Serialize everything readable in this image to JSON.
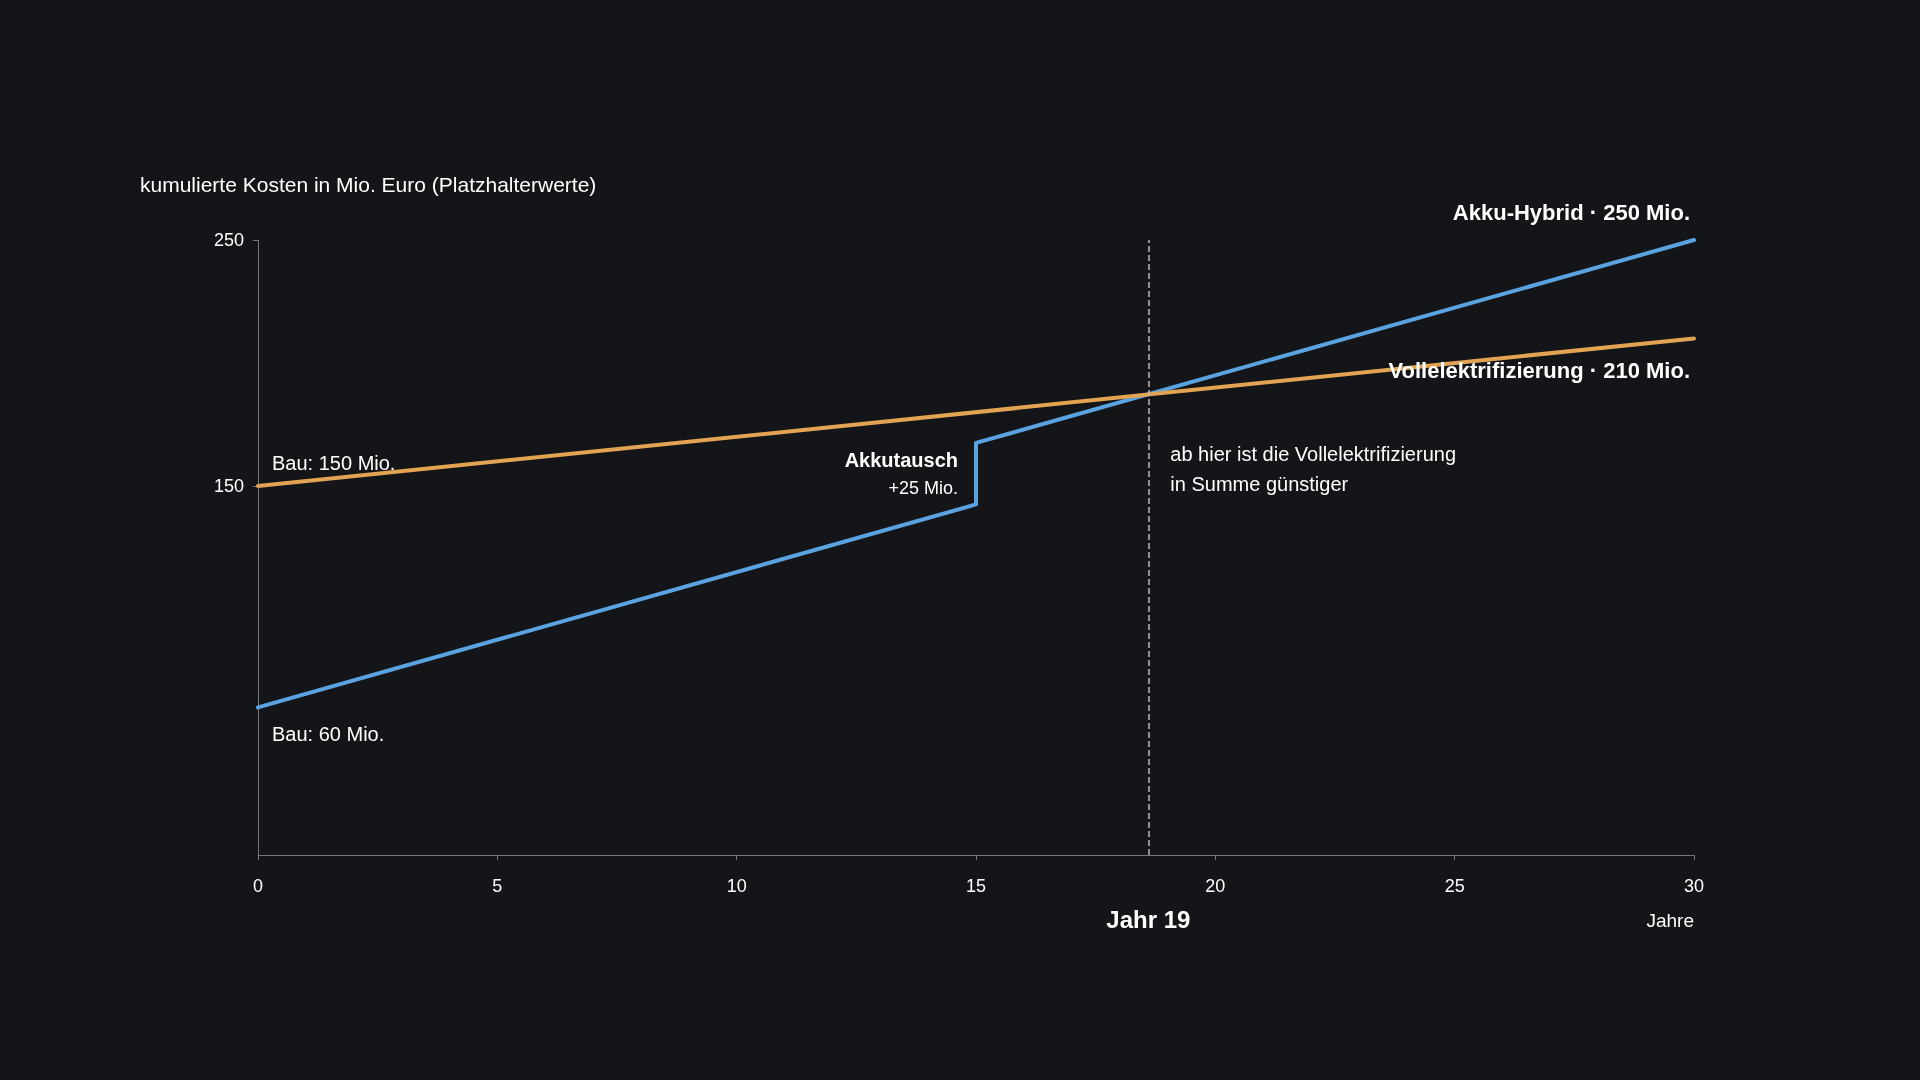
{
  "chart_data": {
    "type": "line",
    "ylabel": "kumulierte Kosten in Mio. Euro (Platzhalterwerte)",
    "xlabel": "Jahre",
    "xlim": [
      0,
      30
    ],
    "xticks": [
      0,
      5,
      10,
      15,
      20,
      25,
      30
    ],
    "ylim": [
      0,
      250
    ],
    "yticks": [
      150,
      250
    ],
    "grid": false,
    "legend": false,
    "marker": "none",
    "series": [
      {
        "name": "Akku-Hybrid · 250 Mio.",
        "color": "#5aa2e0",
        "x": [
          0,
          15,
          15,
          30
        ],
        "values": [
          60,
          142.5,
          167.5,
          250
        ]
      },
      {
        "name": "Vollelektrifizierung · 210 Mio.",
        "color": "#e2a352",
        "x": [
          0,
          30
        ],
        "values": [
          150,
          210
        ]
      }
    ],
    "ref_lines": [
      {
        "axis": "x",
        "value": 18.6,
        "label": "Jahr 19",
        "line_style": "dashed",
        "color": "#bbbbbb"
      }
    ],
    "annotations": [
      {
        "text": "Bau: 150 Mio.",
        "x": 0,
        "y": 150
      },
      {
        "text": "Bau: 60 Mio.",
        "x": 0,
        "y": 60
      },
      {
        "text": "Akkutausch\n+25 Mio.",
        "x": 15,
        "y": 155
      },
      {
        "text": "ab hier ist die Vollelektrifizierung\nin Summe günstiger",
        "x": 18.6,
        "y": 157
      }
    ]
  }
}
